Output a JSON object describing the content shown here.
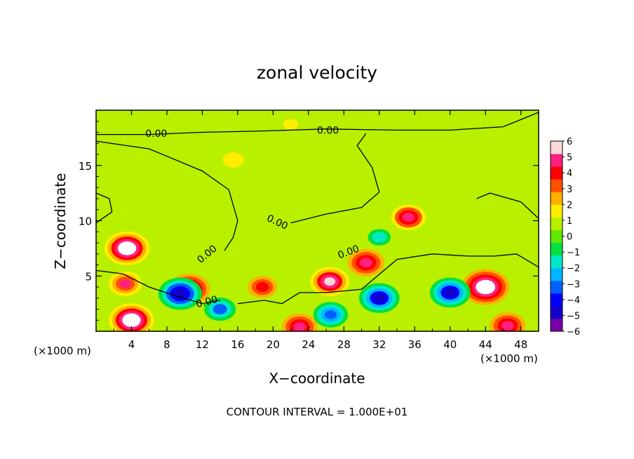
{
  "chart_data": {
    "type": "heatmap",
    "title": "zonal velocity",
    "xlabel": "X−coordinate",
    "ylabel": "Z−coordinate",
    "x_unit_left": "(×1000 m)",
    "x_unit_right": "(×1000 m)",
    "footer": "CONTOUR INTERVAL = 1.000E+01",
    "xlim": [
      0,
      50
    ],
    "ylim": [
      0,
      20
    ],
    "x_ticks": [
      "4",
      "8",
      "12",
      "16",
      "20",
      "24",
      "28",
      "32",
      "36",
      "40",
      "44",
      "48"
    ],
    "x_tick_values": [
      4,
      8,
      12,
      16,
      20,
      24,
      28,
      32,
      36,
      40,
      44,
      48
    ],
    "y_ticks": [
      "5",
      "10",
      "15"
    ],
    "y_tick_values": [
      5,
      10,
      15
    ],
    "contour_label": "0.00",
    "colorbar": {
      "vmin": -6,
      "vmax": 6,
      "tick_labels": [
        "6",
        "5",
        "4",
        "3",
        "2",
        "1",
        "0",
        "−1",
        "−2",
        "−3",
        "−4",
        "−5",
        "−6"
      ],
      "tick_values": [
        6,
        5,
        4,
        3,
        2,
        1,
        0,
        -1,
        -2,
        -3,
        -4,
        -5,
        -6
      ],
      "colors": [
        "#7a00a8",
        "#1500c8",
        "#0000ff",
        "#0060ff",
        "#00b8ff",
        "#00e8c8",
        "#00e040",
        "#60e800",
        "#b8f000",
        "#ffee00",
        "#ffb000",
        "#ff5000",
        "#ff0000",
        "#ff2080",
        "#ffd8d8"
      ]
    },
    "features": [
      {
        "x": 3.5,
        "z": 7.5,
        "value": 6.5
      },
      {
        "x": 3.3,
        "z": 4.3,
        "value": 4.5
      },
      {
        "x": 35.3,
        "z": 10.3,
        "value": 4.8
      },
      {
        "x": 26.4,
        "z": 4.5,
        "value": 5.5
      },
      {
        "x": 30.5,
        "z": 6.2,
        "value": 5.2
      },
      {
        "x": 18.8,
        "z": 4.0,
        "value": 4.0
      },
      {
        "x": 44.0,
        "z": 4.0,
        "value": 7.0
      },
      {
        "x": 4.0,
        "z": 1.0,
        "value": 6.5
      },
      {
        "x": 23.0,
        "z": 0.4,
        "value": 5.0
      },
      {
        "x": 46.5,
        "z": 0.5,
        "value": 5.0
      },
      {
        "x": 10.5,
        "z": 3.8,
        "value": 6.0
      },
      {
        "x": 9.5,
        "z": 3.4,
        "value": -5.0
      },
      {
        "x": 32.0,
        "z": 3.0,
        "value": -4.5
      },
      {
        "x": 40.0,
        "z": 3.5,
        "value": -4.5
      },
      {
        "x": 14.0,
        "z": 2.0,
        "value": -3.0
      },
      {
        "x": 26.5,
        "z": 1.5,
        "value": -3.5
      },
      {
        "x": 15.5,
        "z": 15.5,
        "value": 1.2
      },
      {
        "x": 32.0,
        "z": 8.5,
        "value": -1.5
      },
      {
        "x": 22.0,
        "z": 18.7,
        "value": 1.8
      }
    ]
  }
}
